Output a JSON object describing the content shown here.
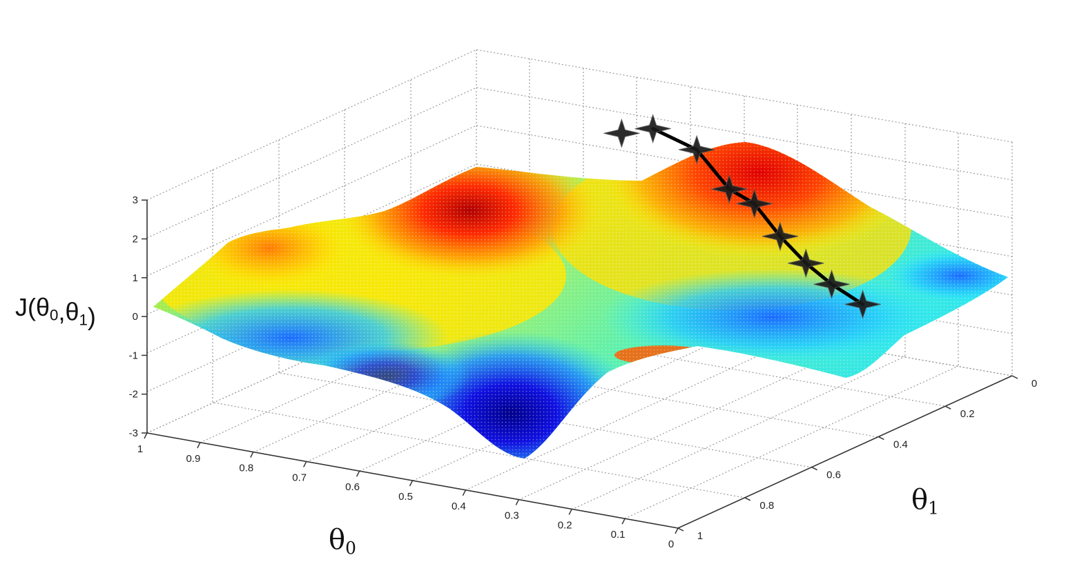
{
  "chart_data": {
    "type": "surface3d",
    "title": "",
    "zlabel": "J(θ0,θ1)",
    "xlabel": "θ0",
    "ylabel": "θ1",
    "x_ticks": [
      "1",
      "0.9",
      "0.8",
      "0.7",
      "0.6",
      "0.5",
      "0.4",
      "0.3",
      "0.2",
      "0.1",
      "0"
    ],
    "y_ticks": [
      "0",
      "0.2",
      "0.4",
      "0.6",
      "0.8",
      "1"
    ],
    "z_ticks": [
      "3",
      "2",
      "1",
      "0",
      "-1",
      "-2",
      "-3"
    ],
    "xlim": [
      0,
      1
    ],
    "ylim": [
      0,
      1
    ],
    "zlim": [
      -3,
      3
    ],
    "grid": true,
    "colormap": "jet",
    "descent_path": {
      "name": "",
      "points": [
        {
          "theta0": 0.62,
          "theta1": 0.09,
          "J": 2.2
        },
        {
          "theta0": 0.55,
          "theta1": 0.07,
          "J": 1.75
        },
        {
          "theta0": 0.47,
          "theta1": 0.1,
          "J": 1.05
        },
        {
          "theta0": 0.41,
          "theta1": 0.12,
          "J": 0.9
        },
        {
          "theta0": 0.33,
          "theta1": 0.17,
          "J": 0.45
        },
        {
          "theta0": 0.25,
          "theta1": 0.22,
          "J": 0.15
        },
        {
          "theta0": 0.17,
          "theta1": 0.27,
          "J": 0.0
        },
        {
          "theta0": 0.08,
          "theta1": 0.32,
          "J": -0.1
        }
      ],
      "extra_point": {
        "theta0": 0.66,
        "theta1": 0.12,
        "J": 2.1
      }
    }
  }
}
